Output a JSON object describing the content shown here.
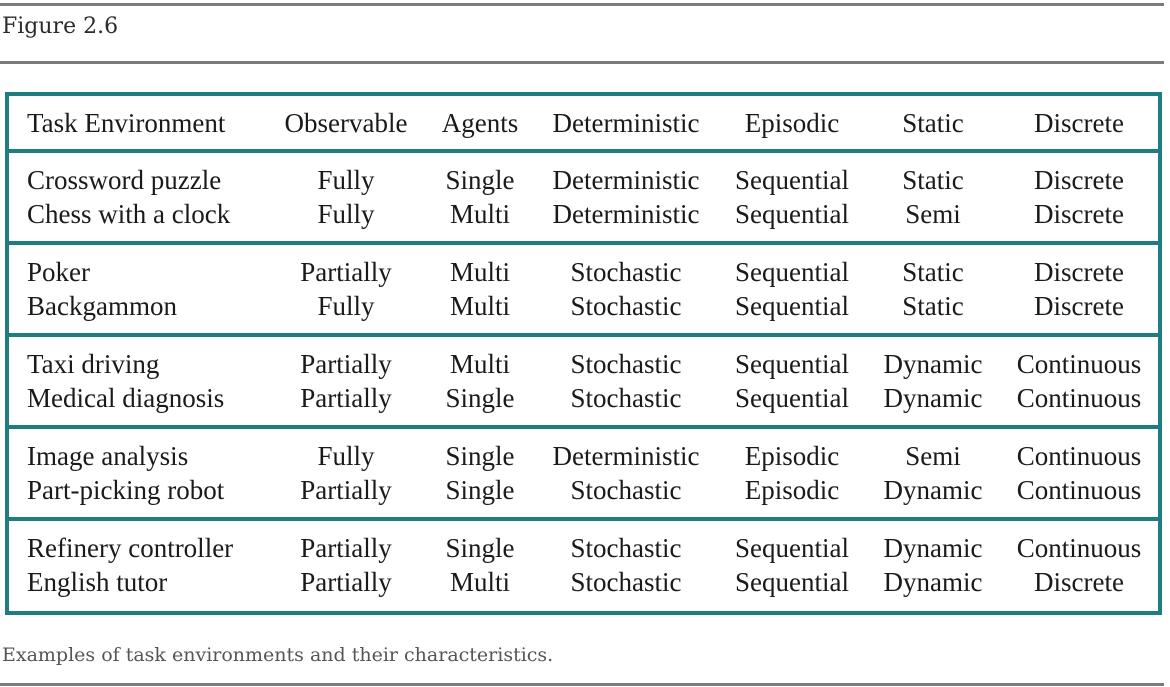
{
  "figure": {
    "label": "Figure 2.6",
    "caption": "Examples of task environments and their characteristics.",
    "accent_color": "#1d7d80",
    "rule_color": "#7b7b7b"
  },
  "table": {
    "headers": [
      "Task Environment",
      "Observable",
      "Agents",
      "Deterministic",
      "Episodic",
      "Static",
      "Discrete"
    ],
    "groups": [
      [
        [
          "Crossword puzzle",
          "Fully",
          "Single",
          "Deterministic",
          "Sequential",
          "Static",
          "Discrete"
        ],
        [
          "Chess with a clock",
          "Fully",
          "Multi",
          "Deterministic",
          "Sequential",
          "Semi",
          "Discrete"
        ]
      ],
      [
        [
          "Poker",
          "Partially",
          "Multi",
          "Stochastic",
          "Sequential",
          "Static",
          "Discrete"
        ],
        [
          "Backgammon",
          "Fully",
          "Multi",
          "Stochastic",
          "Sequential",
          "Static",
          "Discrete"
        ]
      ],
      [
        [
          "Taxi driving",
          "Partially",
          "Multi",
          "Stochastic",
          "Sequential",
          "Dynamic",
          "Continuous"
        ],
        [
          "Medical diagnosis",
          "Partially",
          "Single",
          "Stochastic",
          "Sequential",
          "Dynamic",
          "Continuous"
        ]
      ],
      [
        [
          "Image analysis",
          "Fully",
          "Single",
          "Deterministic",
          "Episodic",
          "Semi",
          "Continuous"
        ],
        [
          "Part-picking robot",
          "Partially",
          "Single",
          "Stochastic",
          "Episodic",
          "Dynamic",
          "Continuous"
        ]
      ],
      [
        [
          "Refinery controller",
          "Partially",
          "Single",
          "Stochastic",
          "Sequential",
          "Dynamic",
          "Continuous"
        ],
        [
          "English tutor",
          "Partially",
          "Multi",
          "Stochastic",
          "Sequential",
          "Dynamic",
          "Discrete"
        ]
      ]
    ]
  }
}
